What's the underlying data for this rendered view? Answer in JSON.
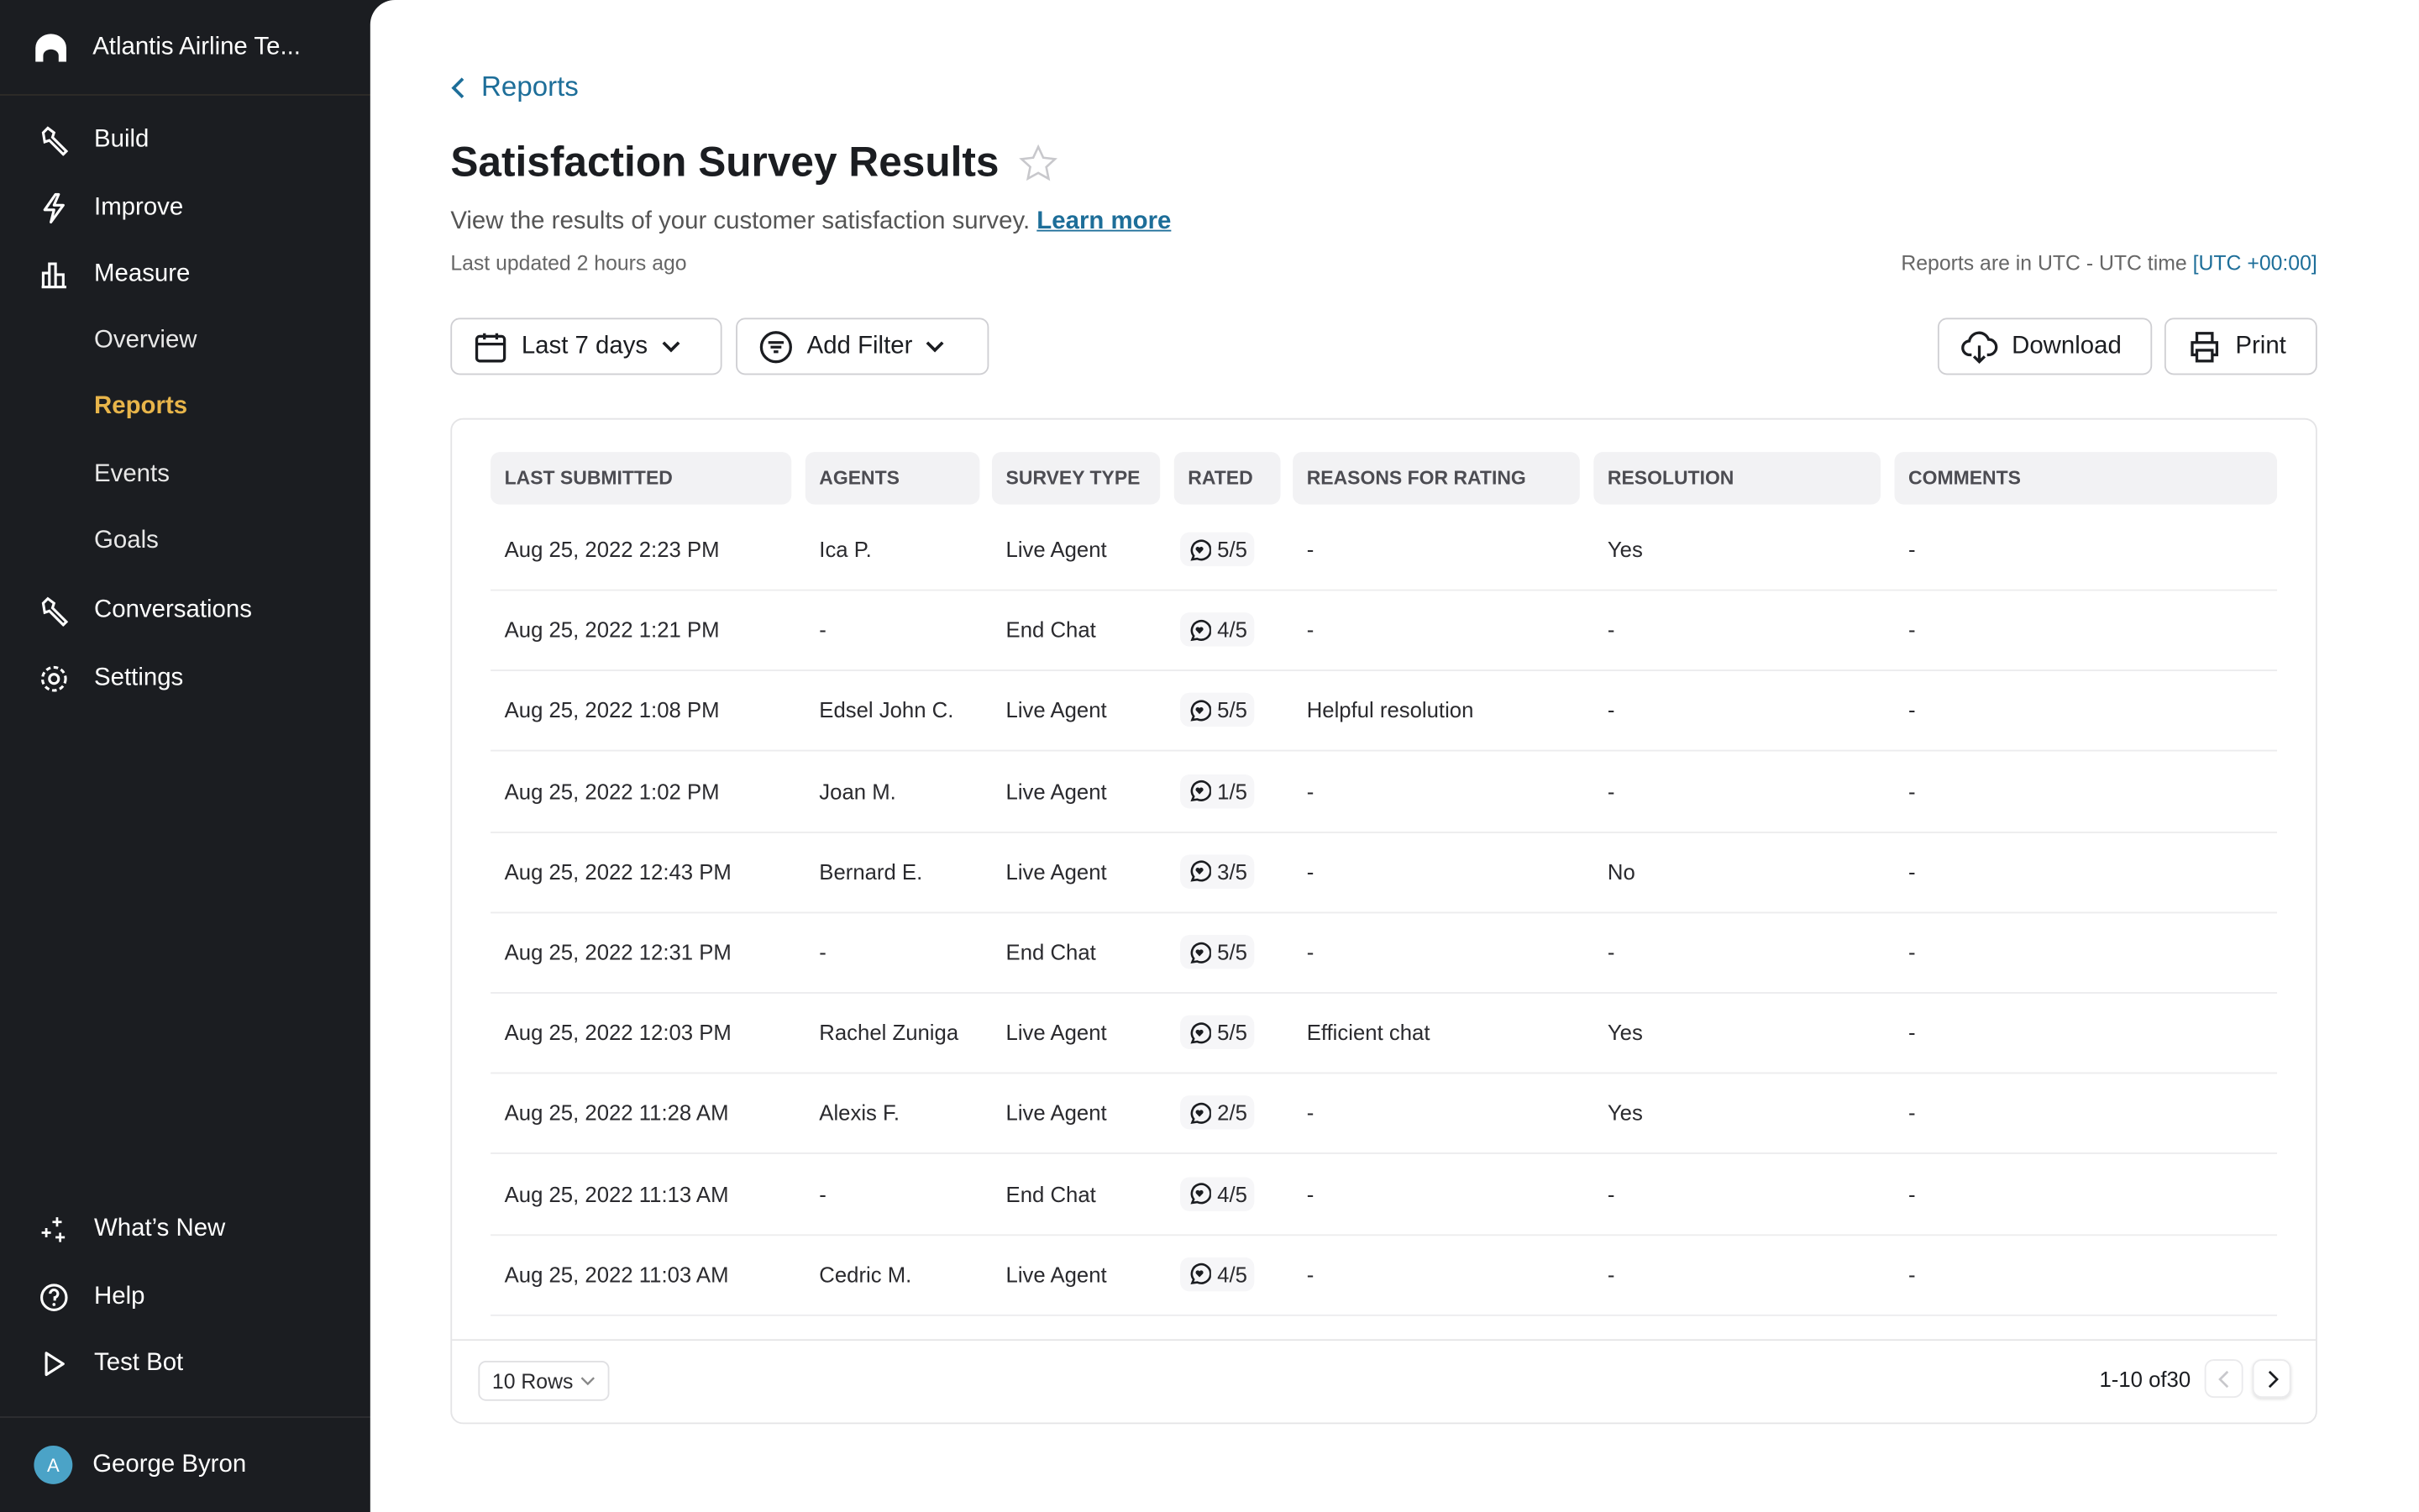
{
  "sidebar": {
    "org_name": "Atlantis Airline Te...",
    "items": [
      {
        "label": "Build",
        "icon": "wrench-icon"
      },
      {
        "label": "Improve",
        "icon": "lightning-icon"
      },
      {
        "label": "Measure",
        "icon": "bar-chart-icon"
      },
      {
        "label": "Conversations",
        "icon": "wrench-icon"
      },
      {
        "label": "Settings",
        "icon": "gear-icon"
      }
    ],
    "sub_items": [
      "Overview",
      "Reports",
      "Events",
      "Goals"
    ],
    "active_sub": "Reports",
    "bottom_items": [
      {
        "label": "What’s New",
        "icon": "sparkles-icon"
      },
      {
        "label": "Help",
        "icon": "help-circle-icon"
      },
      {
        "label": "Test Bot",
        "icon": "play-icon"
      }
    ],
    "user": {
      "initial": "A",
      "name": "George Byron"
    },
    "accent": "#e8b54a"
  },
  "header": {
    "breadcrumb": "Reports",
    "title": "Satisfaction Survey Results",
    "description": "View the results of your customer satisfaction survey.",
    "learn_more": "Learn more",
    "last_updated": "Last updated 2 hours ago",
    "timezone_prefix": "Reports are in UTC - UTC time",
    "timezone_link": "[UTC +00:00]"
  },
  "toolbar": {
    "date_range": "Last 7 days",
    "add_filter": "Add Filter",
    "download": "Download",
    "print": "Print"
  },
  "table": {
    "columns": [
      "LAST SUBMITTED",
      "AGENTS",
      "SURVEY TYPE",
      "RATED",
      "REASONS FOR RATING",
      "RESOLUTION",
      "COMMENTS"
    ],
    "rows": [
      [
        "Aug 25, 2022 2:23 PM",
        "Ica P.",
        "Live Agent",
        "5/5",
        "-",
        "Yes",
        "-"
      ],
      [
        "Aug 25, 2022 1:21 PM",
        "-",
        "End Chat",
        "4/5",
        "-",
        "-",
        "-"
      ],
      [
        "Aug 25, 2022 1:08 PM",
        "Edsel John C.",
        "Live Agent",
        "5/5",
        "Helpful resolution",
        "-",
        "-"
      ],
      [
        "Aug 25, 2022 1:02 PM",
        "Joan M.",
        "Live Agent",
        "1/5",
        "-",
        "-",
        "-"
      ],
      [
        "Aug 25, 2022 12:43 PM",
        "Bernard E.",
        "Live Agent",
        "3/5",
        "-",
        "No",
        "-"
      ],
      [
        "Aug 25, 2022 12:31 PM",
        "-",
        "End Chat",
        "5/5",
        "-",
        "-",
        "-"
      ],
      [
        "Aug 25, 2022 12:03 PM",
        "Rachel Zuniga",
        "Live Agent",
        "5/5",
        "Efficient chat",
        "Yes",
        "-"
      ],
      [
        "Aug 25, 2022 11:28 AM",
        "Alexis F.",
        "Live Agent",
        "2/5",
        "-",
        "Yes",
        "-"
      ],
      [
        "Aug 25, 2022 11:13 AM",
        "-",
        "End Chat",
        "4/5",
        "-",
        "-",
        "-"
      ],
      [
        "Aug 25, 2022 11:03 AM",
        "Cedric M.",
        "Live Agent",
        "4/5",
        "-",
        "-",
        "-"
      ]
    ]
  },
  "pagination": {
    "rows_per_page": "10 Rows",
    "range": "1-10 of30"
  }
}
